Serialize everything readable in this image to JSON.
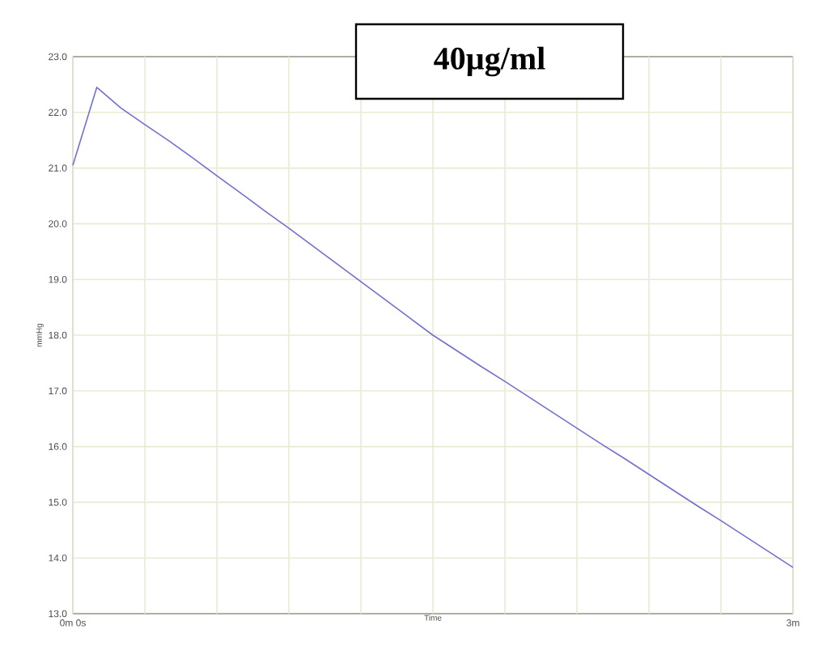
{
  "chart_data": {
    "type": "line",
    "title": "40µg/ml",
    "xlabel": "Time",
    "ylabel": "mmHg",
    "categories": [
      "0m 0s",
      null,
      null,
      null,
      null,
      null,
      null,
      null,
      null,
      null,
      null,
      null,
      null,
      null,
      null,
      null,
      null,
      null,
      null,
      null,
      null,
      null,
      null,
      null,
      null,
      null,
      null,
      null,
      null,
      null,
      "3m"
    ],
    "series": [
      {
        "color": "#7070d0",
        "values": [
          21.05,
          22.45,
          22.08,
          21.78,
          21.49,
          21.18,
          20.86,
          20.55,
          20.23,
          19.92,
          19.6,
          19.28,
          18.96,
          18.64,
          18.32,
          18.0,
          17.72,
          17.44,
          17.17,
          16.89,
          16.61,
          16.33,
          16.05,
          15.78,
          15.5,
          15.22,
          14.94,
          14.67,
          14.39,
          14.11,
          13.83
        ]
      }
    ],
    "ylim": [
      13,
      23
    ],
    "yticks": [
      {
        "value": 13,
        "label": "13.0"
      },
      {
        "value": 14,
        "label": "14.0"
      },
      {
        "value": 15,
        "label": "15.0"
      },
      {
        "value": 16,
        "label": "16.0"
      },
      {
        "value": 17,
        "label": "17.0"
      },
      {
        "value": 18,
        "label": "18.0"
      },
      {
        "value": 19,
        "label": "19.0"
      },
      {
        "value": 20,
        "label": "20.0"
      },
      {
        "value": 21,
        "label": "21.0"
      },
      {
        "value": 22,
        "label": "22.0"
      },
      {
        "value": 23,
        "label": "23.0"
      }
    ],
    "grid": true,
    "marker": "none",
    "line_style": "solid"
  }
}
